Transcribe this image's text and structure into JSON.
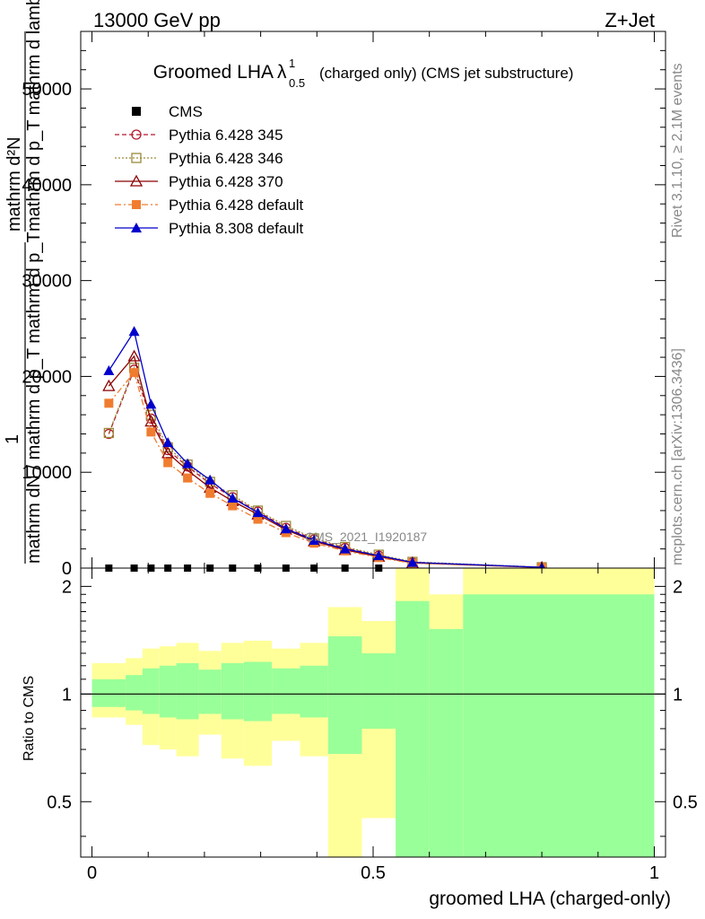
{
  "header": {
    "left": "13000 GeV pp",
    "right": "Z+Jet"
  },
  "side_labels": {
    "rivet": "Rivet 3.1.10, ≥ 2.1M events",
    "mcplots": "mcplots.cern.ch [arXiv:1306.3436]"
  },
  "chart_data": [
    {
      "type": "line",
      "title": "Groomed LHA",
      "title_symbol": "λ",
      "title_sup": "1",
      "title_sub": "0.5",
      "title_suffix": "(charged only) (CMS jet substructure)",
      "watermark": "CMS_2021_I1920187",
      "ylabel_lines": [
        "mathrm d²N",
        "mathrm d p_T mathrm d lambda",
        "1",
        "mathrm dN / mathrm d p_T mathrm d p_T"
      ],
      "ylim": [
        0,
        56000
      ],
      "yticks": [
        0,
        10000,
        20000,
        30000,
        40000,
        50000
      ],
      "ytick_labels": [
        "0",
        "10000",
        "20000",
        "30000",
        "40000",
        "50000"
      ],
      "xlim": [
        -0.02,
        1.02
      ],
      "grid": false,
      "legend_position": "top-left",
      "x": [
        0.03,
        0.075,
        0.105,
        0.135,
        0.17,
        0.21,
        0.25,
        0.295,
        0.345,
        0.395,
        0.45,
        0.51,
        0.57,
        0.8
      ],
      "series": [
        {
          "name": "CMS",
          "color": "#000000",
          "marker": "square",
          "line": "none",
          "values": [
            0,
            0,
            0,
            0,
            0,
            0,
            0,
            0,
            0,
            0,
            0,
            0,
            null,
            null
          ]
        },
        {
          "name": "Pythia 6.428 345",
          "color": "#b2182b",
          "marker": "circle-open",
          "line": "dashed",
          "values": [
            14000,
            20700,
            15600,
            12300,
            10600,
            8800,
            7400,
            5900,
            4200,
            3000,
            2100,
            1300,
            600,
            80
          ]
        },
        {
          "name": "Pythia 6.428 346",
          "color": "#9c8a3a",
          "marker": "square-open",
          "line": "dotted",
          "values": [
            14100,
            20900,
            16000,
            12600,
            10800,
            9000,
            7600,
            6000,
            4400,
            3100,
            2200,
            1400,
            650,
            90
          ]
        },
        {
          "name": "Pythia 6.428 370",
          "color": "#8b0000",
          "marker": "triangle-open",
          "line": "solid",
          "values": [
            19000,
            22100,
            15300,
            12000,
            10200,
            8400,
            7000,
            5600,
            4000,
            2800,
            1900,
            1200,
            550,
            70
          ]
        },
        {
          "name": "Pythia 6.428 default",
          "color": "#f07c30",
          "marker": "square",
          "line": "dashdot",
          "values": [
            17200,
            20400,
            14200,
            11000,
            9400,
            7800,
            6500,
            5100,
            3700,
            2600,
            1800,
            1100,
            500,
            60
          ]
        },
        {
          "name": "Pythia 8.308 default",
          "color": "#0000cc",
          "marker": "triangle",
          "line": "solid",
          "values": [
            20600,
            24700,
            17100,
            13100,
            10900,
            9200,
            7300,
            5800,
            4100,
            2900,
            2000,
            1300,
            600,
            80
          ]
        }
      ]
    },
    {
      "type": "area",
      "ylabel": "Ratio to CMS",
      "xlabel": "groomed LHA (charged-only)",
      "xlim": [
        -0.02,
        1.02
      ],
      "ylim": [
        0.35,
        2.25
      ],
      "log_y": true,
      "yticks": [
        0.5,
        1,
        2
      ],
      "ytick_labels": [
        "0.5",
        "1",
        "2"
      ],
      "xticks": [
        0,
        0.5,
        1
      ],
      "xtick_labels": [
        "0",
        "0.5",
        "1"
      ],
      "reference_line": 1,
      "band_colors": {
        "total": "#ffff99",
        "stat": "#99ff99"
      },
      "bins": [
        {
          "lo": 0.0,
          "hi": 0.06,
          "total": [
            0.86,
            1.22
          ],
          "stat": [
            0.92,
            1.1
          ]
        },
        {
          "lo": 0.06,
          "hi": 0.09,
          "total": [
            0.82,
            1.26
          ],
          "stat": [
            0.9,
            1.13
          ]
        },
        {
          "lo": 0.09,
          "hi": 0.12,
          "total": [
            0.72,
            1.34
          ],
          "stat": [
            0.88,
            1.18
          ]
        },
        {
          "lo": 0.12,
          "hi": 0.15,
          "total": [
            0.7,
            1.36
          ],
          "stat": [
            0.86,
            1.2
          ]
        },
        {
          "lo": 0.15,
          "hi": 0.19,
          "total": [
            0.67,
            1.39
          ],
          "stat": [
            0.85,
            1.22
          ]
        },
        {
          "lo": 0.19,
          "hi": 0.23,
          "total": [
            0.77,
            1.32
          ],
          "stat": [
            0.88,
            1.17
          ]
        },
        {
          "lo": 0.23,
          "hi": 0.27,
          "total": [
            0.66,
            1.39
          ],
          "stat": [
            0.85,
            1.22
          ]
        },
        {
          "lo": 0.27,
          "hi": 0.32,
          "total": [
            0.63,
            1.41
          ],
          "stat": [
            0.84,
            1.23
          ]
        },
        {
          "lo": 0.32,
          "hi": 0.37,
          "total": [
            0.74,
            1.34
          ],
          "stat": [
            0.88,
            1.18
          ]
        },
        {
          "lo": 0.37,
          "hi": 0.42,
          "total": [
            0.67,
            1.39
          ],
          "stat": [
            0.86,
            1.2
          ]
        },
        {
          "lo": 0.42,
          "hi": 0.48,
          "total": [
            0.35,
            1.75
          ],
          "stat": [
            0.68,
            1.45
          ]
        },
        {
          "lo": 0.48,
          "hi": 0.54,
          "total": [
            0.45,
            1.6
          ],
          "stat": [
            0.8,
            1.3
          ]
        },
        {
          "lo": 0.54,
          "hi": 0.6,
          "total": [
            0.35,
            2.25
          ],
          "stat": [
            0.35,
            1.82
          ]
        },
        {
          "lo": 0.6,
          "hi": 0.66,
          "total": [
            0.58,
            1.9
          ],
          "stat": [
            0.35,
            1.52
          ]
        },
        {
          "lo": 0.66,
          "hi": 1.0,
          "total": [
            0.35,
            2.25
          ],
          "stat": [
            0.35,
            1.9
          ]
        }
      ]
    }
  ]
}
